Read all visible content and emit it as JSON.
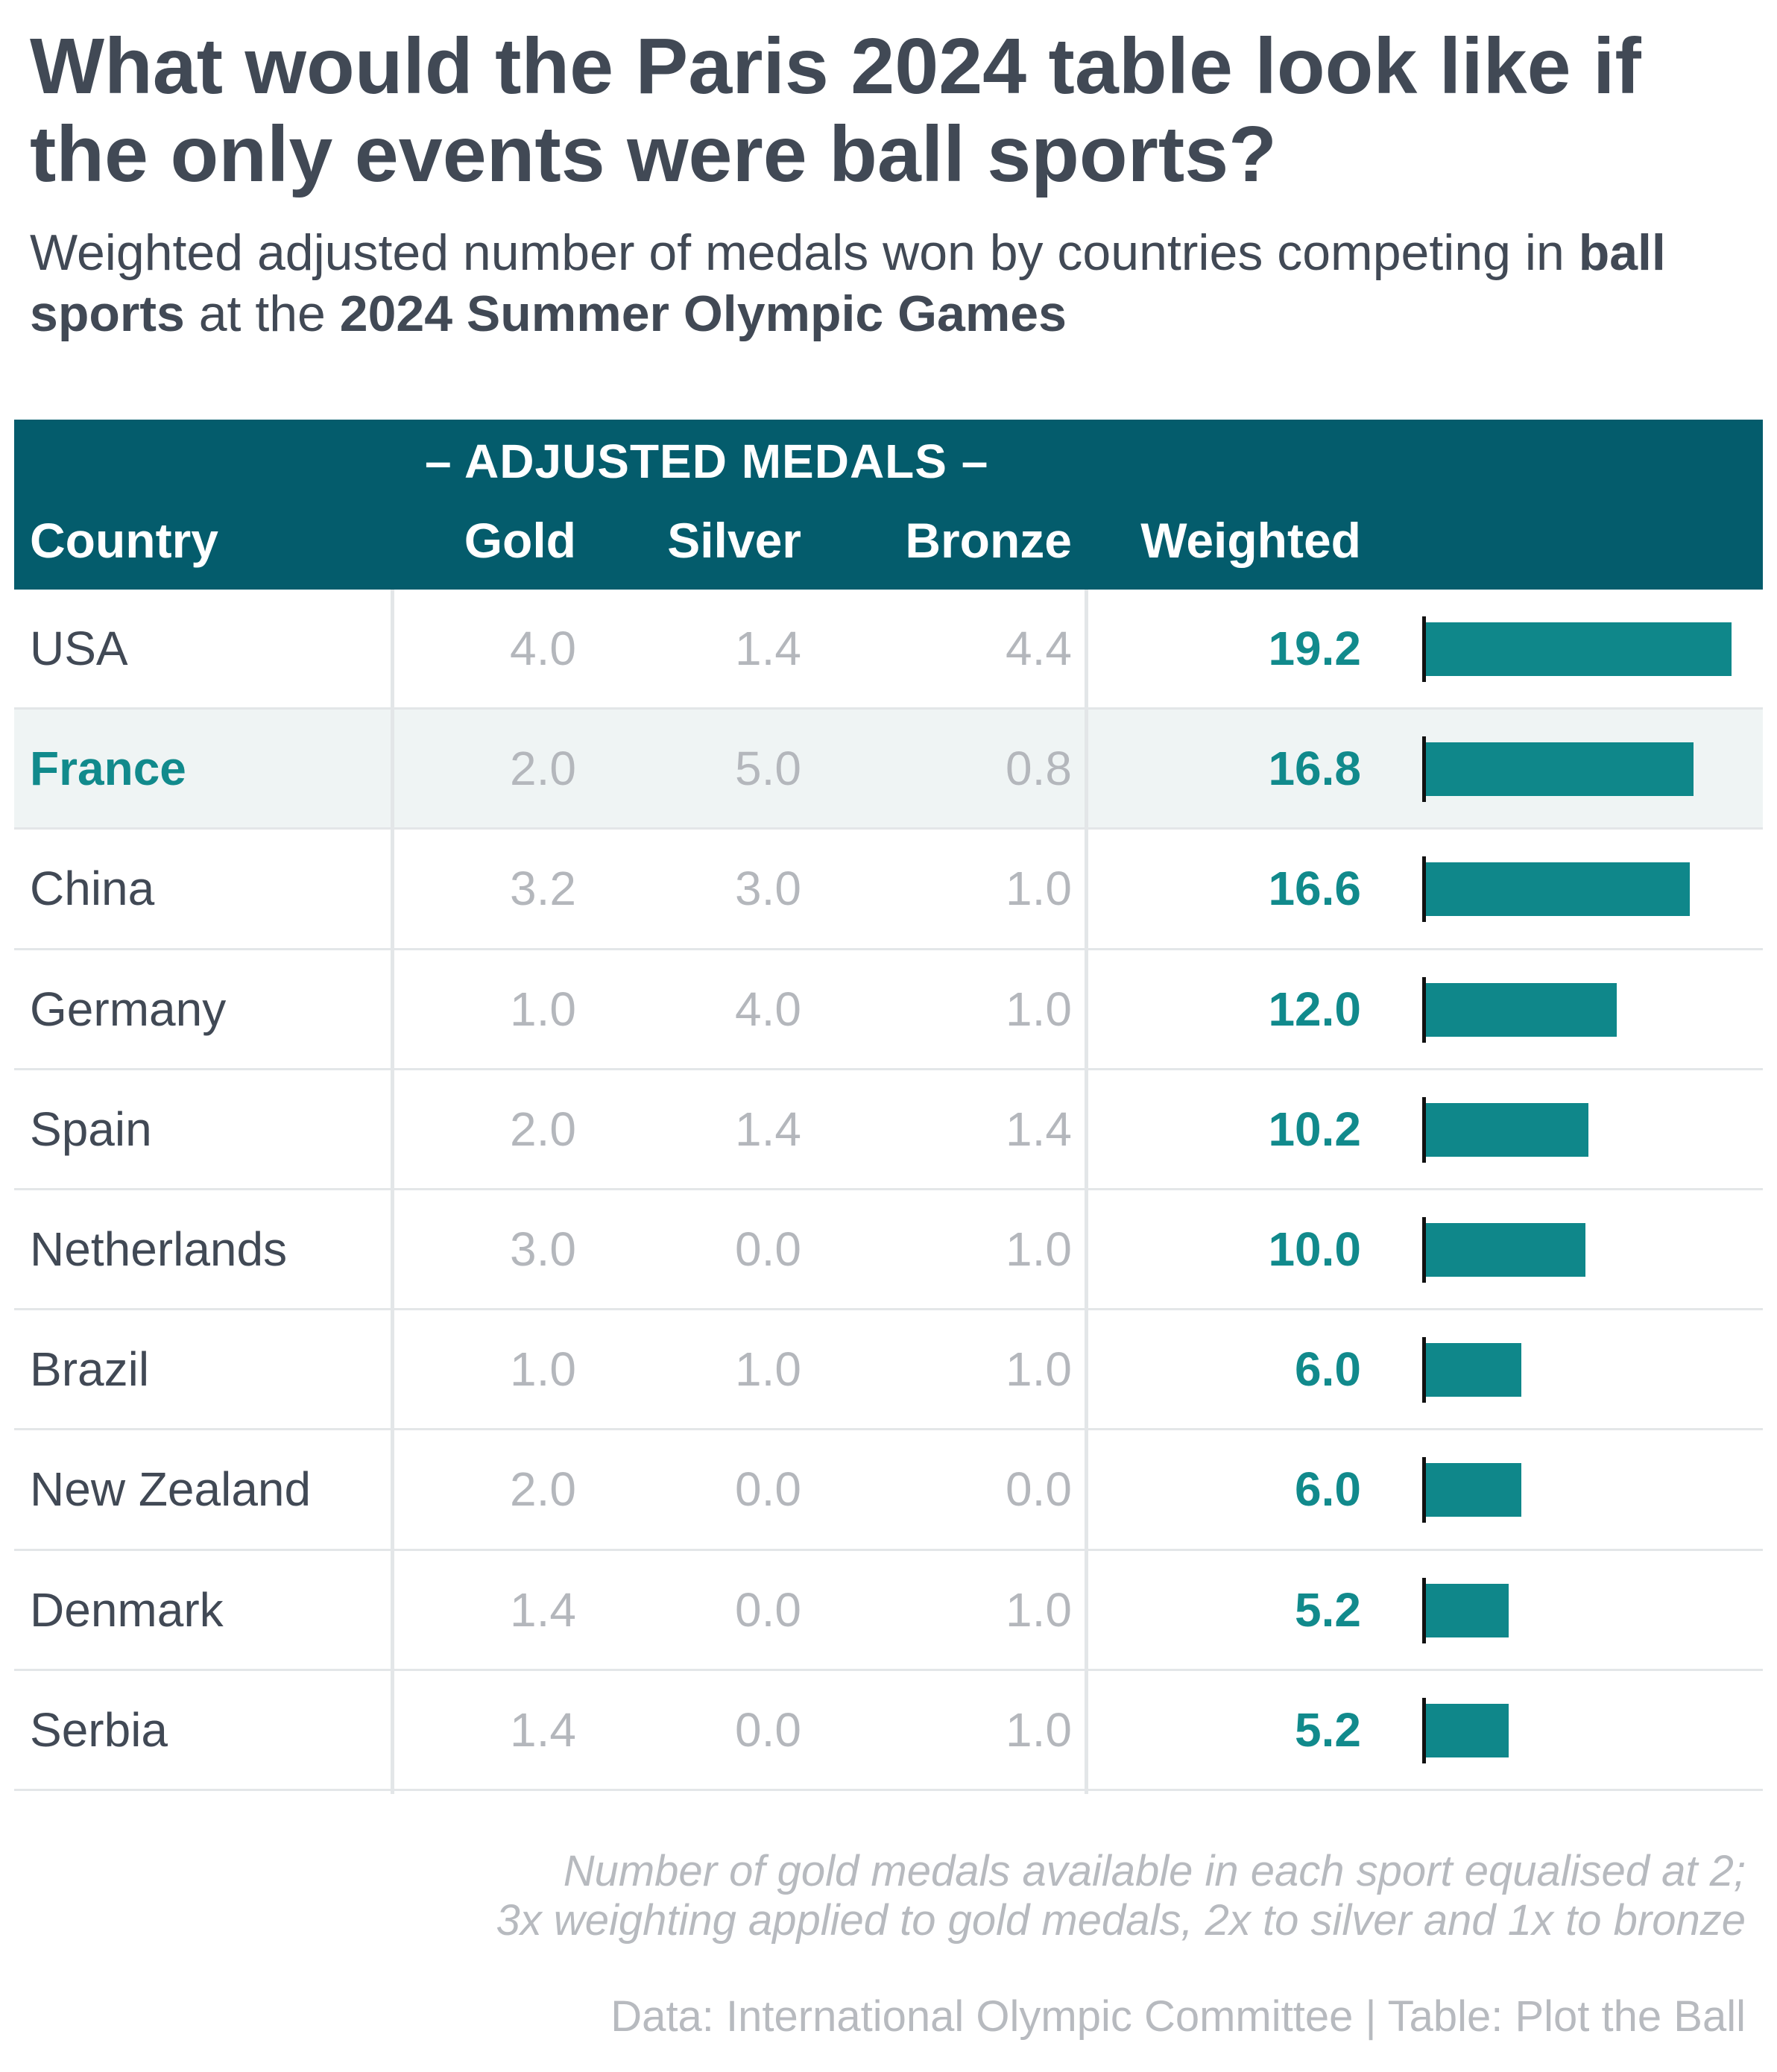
{
  "title": "What would the Paris 2024 table look like if the only events were ball sports?",
  "subtitle": {
    "part1": "Weighted adjusted number of medals won by countries competing in ",
    "bold1": "ball sports",
    "part2": " at the ",
    "bold2": "2024 Summer Olympic Games"
  },
  "header": {
    "group_label": "– ADJUSTED MEDALS –",
    "country": "Country",
    "gold": "Gold",
    "silver": "Silver",
    "bronze": "Bronze",
    "weighted": "Weighted"
  },
  "colors": {
    "header_bg": "#045c6c",
    "accent": "#0f878a",
    "highlight_row": "#eff4f4",
    "muted_text": "#b4b7bc"
  },
  "chart_data": {
    "type": "table",
    "columns": [
      "Country",
      "Gold",
      "Silver",
      "Bronze",
      "Weighted"
    ],
    "bar_column": "Weighted",
    "highlighted_row": "France",
    "rows": [
      {
        "country": "USA",
        "gold": "4.0",
        "silver": "1.4",
        "bronze": "4.4",
        "weighted": "19.2",
        "weighted_value": 19.2
      },
      {
        "country": "France",
        "gold": "2.0",
        "silver": "5.0",
        "bronze": "0.8",
        "weighted": "16.8",
        "weighted_value": 16.8
      },
      {
        "country": "China",
        "gold": "3.2",
        "silver": "3.0",
        "bronze": "1.0",
        "weighted": "16.6",
        "weighted_value": 16.6
      },
      {
        "country": "Germany",
        "gold": "1.0",
        "silver": "4.0",
        "bronze": "1.0",
        "weighted": "12.0",
        "weighted_value": 12.0
      },
      {
        "country": "Spain",
        "gold": "2.0",
        "silver": "1.4",
        "bronze": "1.4",
        "weighted": "10.2",
        "weighted_value": 10.2
      },
      {
        "country": "Netherlands",
        "gold": "3.0",
        "silver": "0.0",
        "bronze": "1.0",
        "weighted": "10.0",
        "weighted_value": 10.0
      },
      {
        "country": "Brazil",
        "gold": "1.0",
        "silver": "1.0",
        "bronze": "1.0",
        "weighted": "6.0",
        "weighted_value": 6.0
      },
      {
        "country": "New Zealand",
        "gold": "2.0",
        "silver": "0.0",
        "bronze": "0.0",
        "weighted": "6.0",
        "weighted_value": 6.0
      },
      {
        "country": "Denmark",
        "gold": "1.4",
        "silver": "0.0",
        "bronze": "1.0",
        "weighted": "5.2",
        "weighted_value": 5.2
      },
      {
        "country": "Serbia",
        "gold": "1.4",
        "silver": "0.0",
        "bronze": "1.0",
        "weighted": "5.2",
        "weighted_value": 5.2
      }
    ]
  },
  "notes": {
    "line1": "Number of gold medals available in each sport equalised at 2;",
    "line2": "3x weighting applied to gold medals, 2x to silver and 1x to bronze"
  },
  "source": "Data: International Olympic Committee | Table: Plot the Ball"
}
